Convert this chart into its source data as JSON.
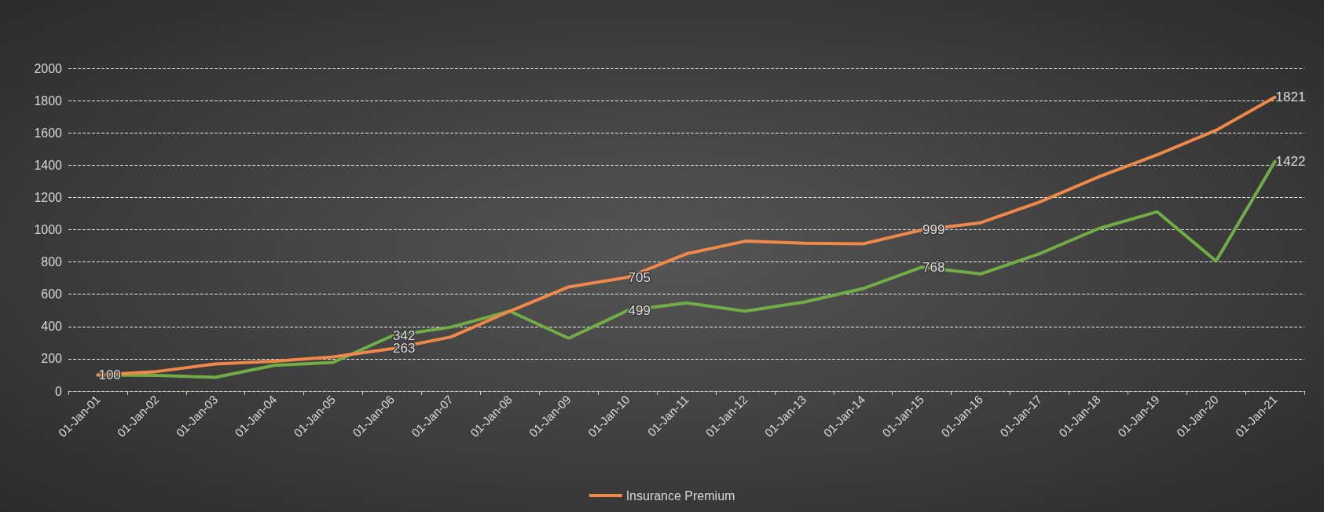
{
  "chart_data": {
    "type": "line",
    "categories": [
      "01-Jan-01",
      "01-Jan-02",
      "01-Jan-03",
      "01-Jan-04",
      "01-Jan-05",
      "01-Jan-06",
      "01-Jan-07",
      "01-Jan-08",
      "01-Jan-09",
      "01-Jan-10",
      "01-Jan-11",
      "01-Jan-12",
      "01-Jan-13",
      "01-Jan-14",
      "01-Jan-15",
      "01-Jan-16",
      "01-Jan-17",
      "01-Jan-18",
      "01-Jan-19",
      "01-Jan-20",
      "01-Jan-21"
    ],
    "series": [
      {
        "color": "#70ad47",
        "values": [
          100,
          97,
          85,
          159,
          178,
          342,
          396,
          495,
          327,
          499,
          546,
          495,
          551,
          635,
          768,
          726,
          851,
          1006,
          1111,
          805,
          1422
        ],
        "value_labels": [
          null,
          null,
          null,
          null,
          null,
          "342",
          null,
          null,
          null,
          "499",
          null,
          null,
          null,
          null,
          "768",
          null,
          null,
          null,
          null,
          null,
          "1422"
        ]
      },
      {
        "name": "Insurance Premium",
        "color": "#f0884a",
        "values": [
          100,
          121,
          168,
          185,
          212,
          263,
          335,
          495,
          645,
          705,
          850,
          929,
          916,
          912,
          999,
          1043,
          1171,
          1327,
          1464,
          1616,
          1821
        ],
        "value_labels": [
          "100",
          null,
          null,
          null,
          null,
          "263",
          null,
          null,
          null,
          "705",
          null,
          null,
          null,
          null,
          "999",
          null,
          null,
          null,
          null,
          null,
          "1821"
        ]
      }
    ],
    "ylim": [
      0,
      2000
    ],
    "yticks": [
      0,
      200,
      400,
      600,
      800,
      1000,
      1200,
      1400,
      1600,
      1800,
      2000
    ],
    "grid": "y",
    "legend": "bottom",
    "marker": "none",
    "line_style": "solid"
  }
}
